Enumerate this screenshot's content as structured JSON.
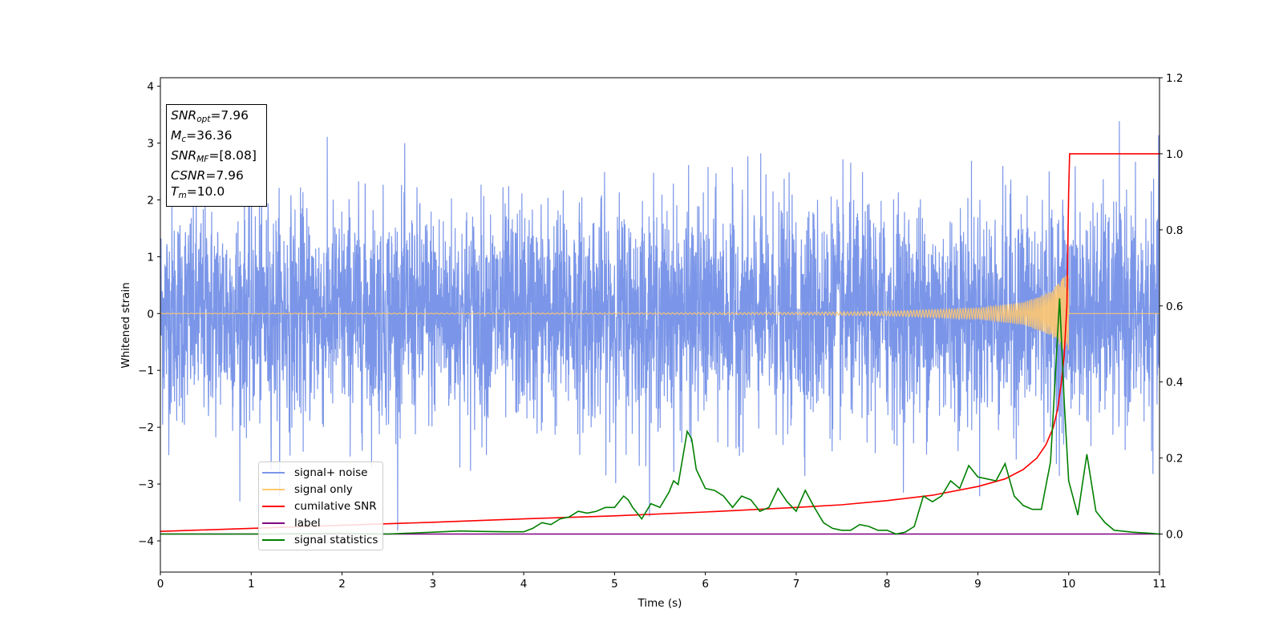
{
  "chart_data": {
    "type": "line",
    "xlabel": "Time (s)",
    "ylabel_left": "Whitened strain",
    "ylabel_right": "",
    "xlim": [
      0,
      11
    ],
    "ylim_left": [
      -4.55,
      4.15
    ],
    "ylim_right": [
      -0.1,
      1.2
    ],
    "x_ticks": [
      0,
      1,
      2,
      3,
      4,
      5,
      6,
      7,
      8,
      9,
      10,
      11
    ],
    "y_left_ticks": [
      -4,
      -3,
      -2,
      -1,
      0,
      1,
      2,
      3,
      4
    ],
    "y_right_ticks": [
      0.0,
      0.2,
      0.4,
      0.6,
      0.8,
      1.0,
      1.2
    ],
    "grid": false,
    "legend_position": "lower-left",
    "legend": [
      {
        "label": "signal+ noise",
        "color": "#7b96e8"
      },
      {
        "label": "signal only",
        "color": "#ffc870"
      },
      {
        "label": "cumilative SNR",
        "color": "#ff0000"
      },
      {
        "label": "label",
        "color": "#800080"
      },
      {
        "label": "signal statistics",
        "color": "#008000"
      }
    ],
    "series": [
      {
        "name": "signal+ noise",
        "axis": "left",
        "color": "#7b96e8",
        "description_values": {
          "mean": 0.0,
          "typical_range": [
            -2.5,
            2.5
          ],
          "peak_max": 3.72,
          "peak_min": -4.15
        }
      },
      {
        "name": "signal only",
        "axis": "left",
        "color": "#ffc870",
        "envelope_points": {
          "x": [
            0,
            5,
            7,
            8,
            9,
            9.5,
            9.8,
            9.95,
            10.0
          ],
          "amp": [
            0.005,
            0.01,
            0.02,
            0.04,
            0.1,
            0.2,
            0.38,
            0.65,
            0.7
          ]
        }
      },
      {
        "name": "cumilative SNR",
        "axis": "right",
        "color": "#ff0000",
        "x": [
          0,
          1,
          2,
          3,
          4,
          5,
          6,
          7,
          7.5,
          8,
          8.5,
          9,
          9.3,
          9.5,
          9.65,
          9.75,
          9.83,
          9.88,
          9.92,
          9.95,
          9.98,
          10.0,
          10.01,
          11
        ],
        "y": [
          0.007,
          0.015,
          0.023,
          0.031,
          0.04,
          0.048,
          0.058,
          0.07,
          0.077,
          0.088,
          0.102,
          0.125,
          0.145,
          0.17,
          0.2,
          0.235,
          0.28,
          0.33,
          0.4,
          0.47,
          0.6,
          0.9,
          1.0,
          1.0
        ]
      },
      {
        "name": "label",
        "axis": "right",
        "color": "#800080",
        "x": [
          0,
          11
        ],
        "y": [
          0.0,
          0.0
        ]
      },
      {
        "name": "signal statistics",
        "axis": "right",
        "color": "#008000",
        "x": [
          0,
          1,
          2,
          2.5,
          3,
          3.3,
          3.5,
          3.8,
          4.0,
          4.1,
          4.2,
          4.3,
          4.4,
          4.5,
          4.6,
          4.7,
          4.8,
          4.9,
          5.0,
          5.1,
          5.15,
          5.2,
          5.3,
          5.4,
          5.5,
          5.6,
          5.65,
          5.7,
          5.8,
          5.85,
          5.9,
          6.0,
          6.1,
          6.2,
          6.3,
          6.4,
          6.5,
          6.6,
          6.7,
          6.8,
          6.9,
          7.0,
          7.1,
          7.2,
          7.3,
          7.4,
          7.5,
          7.6,
          7.7,
          7.8,
          7.9,
          8.0,
          8.1,
          8.2,
          8.3,
          8.4,
          8.5,
          8.6,
          8.7,
          8.8,
          8.9,
          9.0,
          9.1,
          9.2,
          9.3,
          9.4,
          9.5,
          9.6,
          9.7,
          9.8,
          9.9,
          9.95,
          10.0,
          10.1,
          10.2,
          10.3,
          10.4,
          10.5,
          10.7,
          10.9,
          11.0
        ],
        "y": [
          0.0,
          0.0,
          0.002,
          0.0,
          0.005,
          0.008,
          0.007,
          0.006,
          0.006,
          0.015,
          0.03,
          0.025,
          0.04,
          0.045,
          0.06,
          0.055,
          0.06,
          0.07,
          0.07,
          0.1,
          0.09,
          0.07,
          0.04,
          0.08,
          0.07,
          0.11,
          0.14,
          0.13,
          0.27,
          0.25,
          0.17,
          0.12,
          0.115,
          0.1,
          0.07,
          0.1,
          0.09,
          0.06,
          0.07,
          0.12,
          0.085,
          0.06,
          0.115,
          0.07,
          0.03,
          0.015,
          0.01,
          0.01,
          0.025,
          0.02,
          0.01,
          0.01,
          0.0,
          0.005,
          0.02,
          0.1,
          0.085,
          0.1,
          0.14,
          0.12,
          0.18,
          0.15,
          0.145,
          0.14,
          0.185,
          0.1,
          0.075,
          0.065,
          0.065,
          0.19,
          0.62,
          0.35,
          0.14,
          0.05,
          0.21,
          0.06,
          0.03,
          0.01,
          0.005,
          0.002,
          0.0
        ]
      }
    ]
  },
  "infobox": {
    "snr_opt_base": "SNR",
    "snr_opt_sub": "opt",
    "snr_opt_value": "=7.96",
    "mc_base": "M",
    "mc_sub": "c",
    "mc_value": "=36.36",
    "snr_mf_base": "SNR",
    "snr_mf_sub": "MF",
    "snr_mf_value": "=[8.08]",
    "csnr_base": "CSNR",
    "csnr_value": "=7.96",
    "tm_base": "T",
    "tm_sub": "m",
    "tm_value": "=10.0"
  }
}
